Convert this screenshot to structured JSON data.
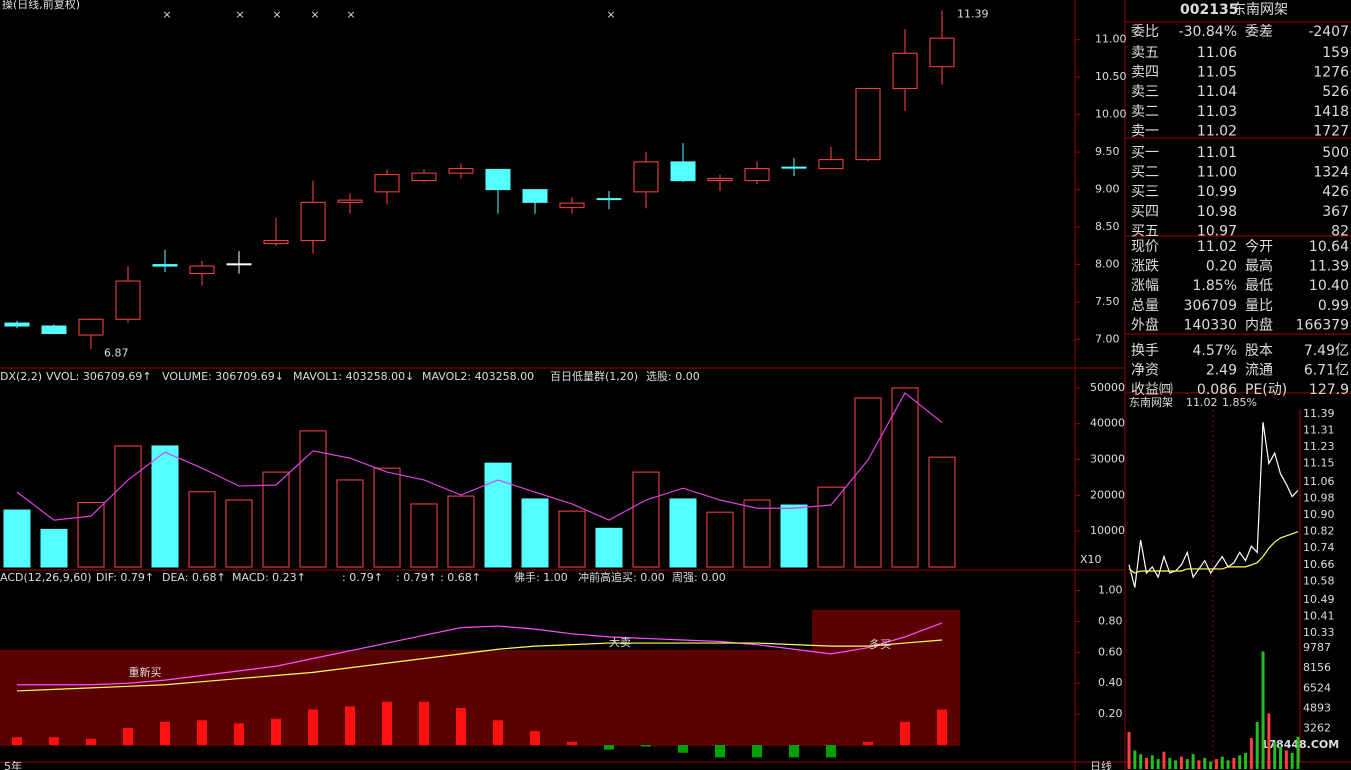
{
  "header": {
    "title": "操(日线,前复权)"
  },
  "chart_data": [
    {
      "type": "candlestick",
      "open": [
        7.22,
        7.18,
        7.06,
        7.27,
        8.0,
        7.88,
        8.01,
        8.28,
        8.32,
        8.83,
        8.97,
        9.12,
        9.22,
        9.27,
        9.0,
        8.76,
        8.88,
        8.97,
        9.37,
        9.12,
        9.12,
        9.3,
        9.28,
        9.4,
        10.35,
        10.64
      ],
      "high": [
        7.25,
        7.2,
        7.28,
        7.98,
        8.2,
        8.05,
        8.18,
        8.62,
        9.12,
        8.95,
        9.27,
        9.27,
        9.35,
        9.27,
        9.0,
        8.9,
        8.98,
        9.5,
        9.62,
        9.2,
        9.37,
        9.42,
        9.57,
        10.35,
        11.14,
        11.39
      ],
      "low": [
        7.15,
        7.07,
        6.87,
        7.22,
        7.9,
        7.72,
        7.88,
        8.25,
        8.15,
        8.68,
        8.8,
        9.1,
        9.15,
        8.68,
        8.68,
        8.68,
        8.74,
        8.75,
        9.1,
        8.98,
        9.07,
        9.18,
        9.27,
        9.38,
        10.05,
        10.4
      ],
      "close": [
        7.18,
        7.08,
        7.27,
        7.78,
        7.98,
        7.98,
        8.01,
        8.32,
        8.83,
        8.86,
        9.2,
        9.22,
        9.28,
        9.0,
        8.83,
        8.82,
        8.87,
        9.37,
        9.12,
        9.15,
        9.28,
        9.29,
        9.4,
        10.35,
        10.82,
        11.02
      ],
      "up_color": "#ff4848",
      "down_color": "#54ffff",
      "flat_color": "#ffffff",
      "ylim": [
        6.66,
        11.53
      ],
      "yticks": [
        {
          "value": 7,
          "label": "7.00"
        },
        {
          "value": 7.5,
          "label": "7.50"
        },
        {
          "value": 8,
          "label": "8.00"
        },
        {
          "value": 8.5,
          "label": "8.50"
        },
        {
          "value": 9,
          "label": "9.00"
        },
        {
          "value": 9.5,
          "label": "9.50"
        },
        {
          "value": 10,
          "label": "10.00"
        },
        {
          "value": 10.5,
          "label": "10.50"
        },
        {
          "value": 11,
          "label": "11.00"
        }
      ],
      "high_label": "11.39",
      "low_label": "6.87"
    },
    {
      "type": "bar",
      "legend": [
        "DX(2,2)",
        "VVOL: 306709.69↑",
        "VOLUME: 306709.69↓",
        "MAVOL1: 403258.00↓",
        "MAVOL2: 403258.00",
        "百日低量群(1,20)",
        "选股: 0.00"
      ],
      "unit_label": "X10",
      "ylim": [
        0,
        55000
      ],
      "yticks": [
        10000,
        20000,
        30000,
        40000,
        50000
      ],
      "series": [
        {
          "name": "VOLUME",
          "type": "bar",
          "values": [
            15900,
            10500,
            18000,
            33800,
            33800,
            21000,
            18700,
            26500,
            38000,
            24300,
            27600,
            17600,
            19800,
            29000,
            19000,
            15600,
            10800,
            26500,
            19000,
            15300,
            18700,
            17300,
            22300,
            47200,
            50000,
            30671
          ]
        },
        {
          "name": "MAVOL1",
          "type": "line",
          "color": "#e040e0",
          "values": [
            20900,
            13100,
            14200,
            24300,
            32100,
            27600,
            22600,
            22900,
            32400,
            30400,
            26500,
            24300,
            20100,
            24300,
            20900,
            17600,
            13100,
            18700,
            22000,
            18700,
            16400,
            16400,
            17300,
            29900,
            48600,
            40326
          ]
        }
      ]
    },
    {
      "type": "line",
      "legend": [
        "ACD(12,26,9,60)",
        "DIF: 0.79↑",
        "DEA: 0.68↑",
        "MACD: 0.23↑",
        ": 0.79↑",
        ": 0.79↑",
        ": 0.68↑",
        "佛手: 1.00",
        "冲前高追买: 0.00",
        "周强: 0.00"
      ],
      "annotations": [
        "重新买",
        "大卖",
        "多买"
      ],
      "ylim": [
        -0.11,
        1.12
      ],
      "yticks": [
        {
          "value": 0.2,
          "label": "0.20"
        },
        {
          "value": 0.4,
          "label": "0.40"
        },
        {
          "value": 0.6,
          "label": "0.60"
        },
        {
          "value": 0.8,
          "label": "0.80"
        },
        {
          "value": 1,
          "label": "1.00"
        }
      ],
      "series": [
        {
          "name": "DIF",
          "type": "line",
          "color": "#ff50ff",
          "values": [
            0.39,
            0.39,
            0.39,
            0.4,
            0.42,
            0.45,
            0.48,
            0.51,
            0.56,
            0.61,
            0.66,
            0.71,
            0.76,
            0.77,
            0.75,
            0.72,
            0.7,
            0.69,
            0.68,
            0.67,
            0.65,
            0.62,
            0.59,
            0.63,
            0.7,
            0.79
          ]
        },
        {
          "name": "DEA",
          "type": "line",
          "color": "#ffff60",
          "values": [
            0.35,
            0.36,
            0.37,
            0.38,
            0.39,
            0.41,
            0.43,
            0.45,
            0.47,
            0.5,
            0.53,
            0.56,
            0.59,
            0.62,
            0.64,
            0.65,
            0.66,
            0.66,
            0.66,
            0.66,
            0.66,
            0.65,
            0.64,
            0.64,
            0.66,
            0.68
          ]
        },
        {
          "name": "MACD",
          "type": "bar",
          "up_color": "#ff1010",
          "down_color": "#00a000",
          "values": [
            0.05,
            0.05,
            0.04,
            0.11,
            0.15,
            0.16,
            0.14,
            0.17,
            0.23,
            0.25,
            0.28,
            0.28,
            0.24,
            0.16,
            0.09,
            0.02,
            -0.03,
            -0.01,
            -0.05,
            -0.08,
            -0.08,
            -0.08,
            -0.08,
            0.02,
            0.15,
            0.23
          ]
        }
      ]
    },
    {
      "type": "line",
      "title": "东南网架",
      "price": "11.02",
      "change": "1.85%",
      "ylim": [
        10.296,
        11.409
      ],
      "yticks": [
        {
          "value": 11.39,
          "label": "11.39"
        },
        {
          "value": 11.31,
          "label": "11.31"
        },
        {
          "value": 11.23,
          "label": "11.23"
        },
        {
          "value": 11.15,
          "label": "11.15"
        },
        {
          "value": 11.06,
          "label": "11.06"
        },
        {
          "value": 10.98,
          "label": "10.98"
        },
        {
          "value": 10.9,
          "label": "10.90"
        },
        {
          "value": 10.82,
          "label": "10.82"
        },
        {
          "value": 10.74,
          "label": "10.74"
        },
        {
          "value": 10.66,
          "label": "10.66"
        },
        {
          "value": 10.58,
          "label": "10.58"
        },
        {
          "value": 10.49,
          "label": "10.49"
        },
        {
          "value": 10.41,
          "label": "10.41"
        },
        {
          "value": 10.33,
          "label": "10.33"
        }
      ],
      "series": [
        {
          "name": "price",
          "color": "#ffffff",
          "values": [
            10.66,
            10.55,
            10.78,
            10.62,
            10.65,
            10.6,
            10.7,
            10.62,
            10.63,
            10.66,
            10.72,
            10.6,
            10.64,
            10.68,
            10.62,
            10.66,
            10.7,
            10.65,
            10.67,
            10.72,
            10.68,
            10.75,
            10.72,
            11.35,
            11.15,
            11.2,
            11.1,
            11.05,
            10.99,
            11.02
          ]
        },
        {
          "name": "average",
          "color": "#ffff60",
          "values": [
            10.64,
            10.62,
            10.63,
            10.63,
            10.63,
            10.63,
            10.63,
            10.63,
            10.63,
            10.63,
            10.64,
            10.64,
            10.64,
            10.64,
            10.64,
            10.64,
            10.64,
            10.65,
            10.65,
            10.65,
            10.65,
            10.66,
            10.67,
            10.7,
            10.74,
            10.77,
            10.79,
            10.8,
            10.81,
            10.82
          ]
        }
      ],
      "volume": {
        "ylim": [
          0,
          10430
        ],
        "yticks": [
          9787,
          8156,
          6524,
          4893,
          3262
        ],
        "values": [
          3000,
          1500,
          1200,
          900,
          1100,
          800,
          1400,
          900,
          700,
          1000,
          800,
          1200,
          700,
          900,
          600,
          800,
          1000,
          700,
          900,
          1100,
          1300,
          2500,
          3800,
          9500,
          4500,
          2200,
          1800,
          1500,
          1300,
          2600
        ]
      }
    }
  ],
  "quote": {
    "code": "002135",
    "name": "东南网架",
    "ratio": [
      "委比",
      "-30.84%",
      "委差",
      "-2407"
    ],
    "book": [
      [
        "卖五",
        "11.06",
        "159"
      ],
      [
        "卖四",
        "11.05",
        "1276"
      ],
      [
        "卖三",
        "11.04",
        "526"
      ],
      [
        "卖二",
        "11.03",
        "1418"
      ],
      [
        "卖一",
        "11.02",
        "1727"
      ],
      [
        "买一",
        "11.01",
        "500"
      ],
      [
        "买二",
        "11.00",
        "1324"
      ],
      [
        "买三",
        "10.99",
        "426"
      ],
      [
        "买四",
        "10.98",
        "367"
      ],
      [
        "买五",
        "10.97",
        "82"
      ]
    ],
    "stats": [
      [
        "现价",
        "11.02",
        "今开",
        "10.64"
      ],
      [
        "涨跌",
        "0.20",
        "最高",
        "11.39"
      ],
      [
        "涨幅",
        "1.85%",
        "最低",
        "10.40"
      ],
      [
        "总量",
        "306709",
        "量比",
        "0.99"
      ],
      [
        "外盘",
        "140330",
        "内盘",
        "166379"
      ],
      [
        "换手",
        "4.57%",
        "股本",
        "7.49亿"
      ],
      [
        "净资",
        "2.49",
        "流通",
        "6.71亿"
      ],
      [
        "收益㈣",
        "0.086",
        "PE(动)",
        "127.9"
      ]
    ]
  },
  "footer": {
    "left": "5年",
    "right": "日线",
    "watermark": "178448.COM"
  }
}
